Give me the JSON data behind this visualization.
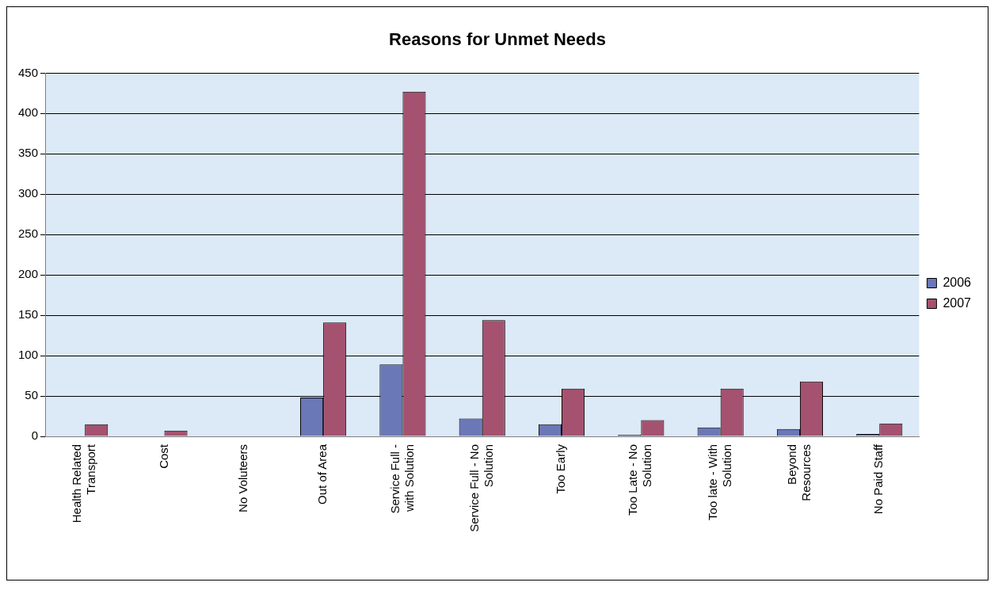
{
  "chart_data": {
    "type": "bar",
    "title": "Reasons for Unmet Needs",
    "categories": [
      "Health Related Transport",
      "Cost",
      "No Voluteers",
      "Out of Area",
      "Service Full - with Solution",
      "Service Full - No Solution",
      "Too Early",
      "Too Late - No Solution",
      "Too late - With Solution",
      "Beyond Resources",
      "No Paid Staff"
    ],
    "series": [
      {
        "name": "2006",
        "color": "#6a78b8",
        "values": [
          0,
          0,
          0,
          48,
          89,
          22,
          15,
          2,
          11,
          9,
          3
        ]
      },
      {
        "name": "2007",
        "color": "#a4526f",
        "values": [
          15,
          7,
          0,
          141,
          427,
          144,
          59,
          20,
          59,
          68,
          16
        ]
      }
    ],
    "ylim": [
      0,
      450
    ],
    "yticks": [
      0,
      50,
      100,
      150,
      200,
      250,
      300,
      350,
      400,
      450
    ],
    "grid": "y",
    "legend": "right"
  }
}
